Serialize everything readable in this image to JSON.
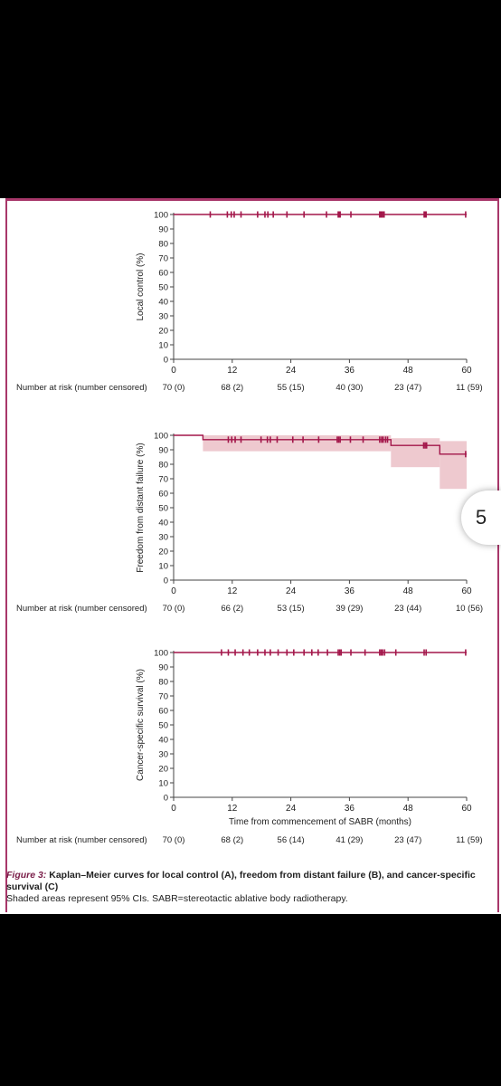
{
  "chart_data": [
    {
      "type": "line",
      "ylabel": "Local control (%)",
      "xlabel": "",
      "ylim": [
        0,
        100
      ],
      "xlim": [
        0,
        60
      ],
      "yticks": [
        "0",
        "10",
        "20",
        "30",
        "40",
        "50",
        "60",
        "70",
        "80",
        "90",
        "100"
      ],
      "xticks": [
        "0",
        "12",
        "24",
        "36",
        "48",
        "60"
      ],
      "series": [
        {
          "x": [
            0,
            60
          ],
          "y": [
            100,
            100
          ],
          "ci": []
        }
      ],
      "censor_times": [
        7.5,
        11,
        11.8,
        12.4,
        13.8,
        17.2,
        18.7,
        19.3,
        20.4,
        23.2,
        26.7,
        31.3,
        33.7,
        33.9,
        34.1,
        36.3,
        42.2,
        42.4,
        42.6,
        42.8,
        43.1,
        51.3,
        51.5,
        51.7,
        59.8
      ],
      "at_risk_label": "Number at risk (number censored)",
      "at_risk": [
        "70 (0)",
        "68 (2)",
        "55 (15)",
        "40 (30)",
        "23 (47)",
        "11 (59)"
      ]
    },
    {
      "type": "line",
      "ylabel": "Freedom from distant failure (%)",
      "xlabel": "",
      "ylim": [
        0,
        100
      ],
      "xlim": [
        0,
        60
      ],
      "yticks": [
        "0",
        "10",
        "20",
        "30",
        "40",
        "50",
        "60",
        "70",
        "80",
        "90",
        "100"
      ],
      "xticks": [
        "0",
        "12",
        "24",
        "36",
        "48",
        "60"
      ],
      "series": [
        {
          "x": [
            0,
            6,
            6,
            44.5,
            44.5,
            54.5,
            54.5,
            60
          ],
          "y": [
            100,
            100,
            97,
            97,
            93,
            93,
            87,
            87
          ]
        }
      ],
      "ci_band": [
        {
          "x0": 6,
          "x1": 44.5,
          "lo": 89,
          "hi": 100
        },
        {
          "x0": 44.5,
          "x1": 54.5,
          "lo": 78,
          "hi": 98
        },
        {
          "x0": 54.5,
          "x1": 60,
          "lo": 63,
          "hi": 96
        }
      ],
      "censor_times": [
        11.2,
        11.9,
        12.6,
        13.8,
        17.9,
        19.2,
        19.8,
        21.2,
        24.4,
        26.5,
        29.7,
        33.5,
        33.8,
        34.1,
        36.2,
        38.8,
        42.2,
        42.6,
        42.9,
        43.4,
        43.8,
        51.2,
        51.5,
        51.8,
        59.8
      ],
      "at_risk_label": "Number at risk (number censored)",
      "at_risk": [
        "70 (0)",
        "66 (2)",
        "53 (15)",
        "39 (29)",
        "23 (44)",
        "10 (56)"
      ]
    },
    {
      "type": "line",
      "ylabel": "Cancer-specific survival (%)",
      "xlabel": "Time from commencement of SABR (months)",
      "ylim": [
        0,
        100
      ],
      "xlim": [
        0,
        60
      ],
      "yticks": [
        "0",
        "10",
        "20",
        "30",
        "40",
        "50",
        "60",
        "70",
        "80",
        "90",
        "100"
      ],
      "xticks": [
        "0",
        "12",
        "24",
        "36",
        "48",
        "60"
      ],
      "series": [
        {
          "x": [
            0,
            60
          ],
          "y": [
            100,
            100
          ]
        }
      ],
      "censor_times": [
        9.8,
        11.2,
        12.6,
        14.2,
        15.5,
        17.2,
        18.7,
        19.8,
        21.4,
        23.2,
        24.6,
        26.7,
        28.3,
        29.6,
        31.5,
        33.7,
        34.0,
        34.3,
        36.3,
        39.2,
        42.2,
        42.5,
        42.8,
        43.2,
        45.5,
        51.3,
        51.7,
        59.8
      ],
      "at_risk_label": "Number at risk (number censored)",
      "at_risk": [
        "70 (0)",
        "68 (2)",
        "56 (14)",
        "41 (29)",
        "23 (47)",
        "11 (59)"
      ]
    }
  ],
  "colors": {
    "curve": "#a3164a",
    "band": "#eec9cf",
    "frame": "#a8376a",
    "caption_label": "#7a1d48"
  },
  "caption": {
    "label": "Figure 3:",
    "title": " Kaplan–Meier curves for local control (A), freedom from distant failure (B), and cancer-specific survival (C)",
    "note": "Shaded areas represent 95% CIs. SABR=stereotactic ablative body radiotherapy."
  },
  "side_button": {
    "label": "5"
  }
}
